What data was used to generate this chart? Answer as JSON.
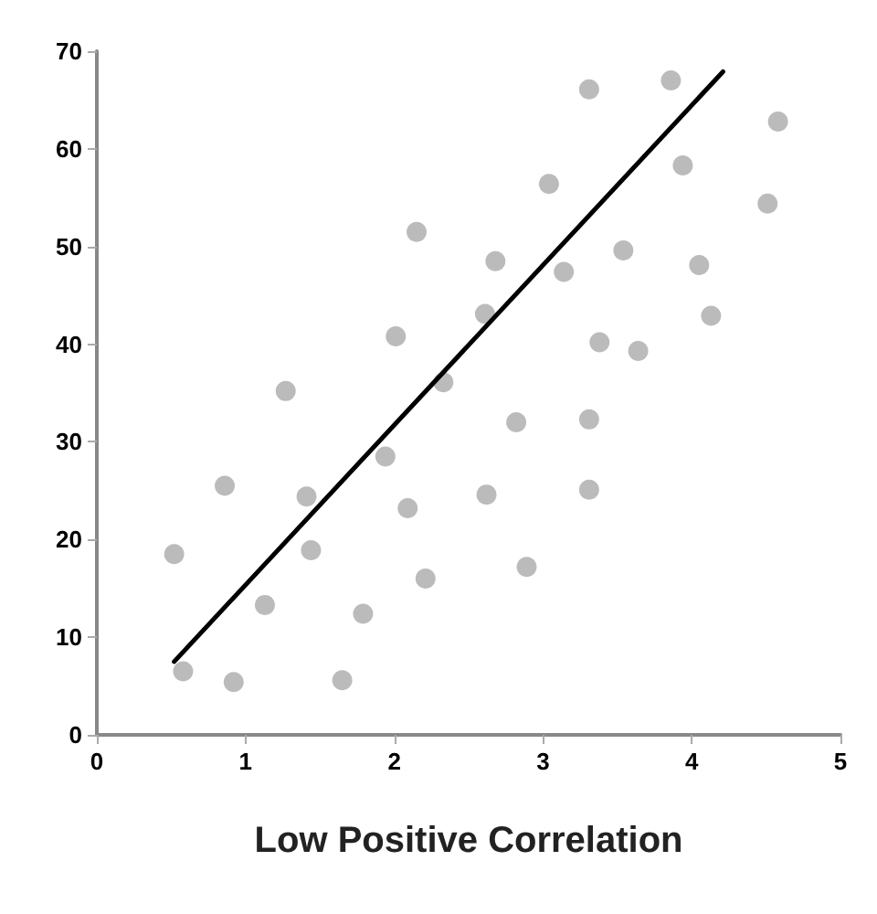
{
  "chart_data": {
    "type": "scatter",
    "xlabel": "Low Positive Correlation",
    "xlim": [
      0,
      5
    ],
    "xticks": [
      0,
      1,
      2,
      3,
      4,
      5
    ],
    "ylim": [
      0,
      70
    ],
    "yticks": [
      0,
      10,
      20,
      30,
      40,
      50,
      60,
      70
    ],
    "grid": false,
    "marker": "circle",
    "series": [
      {
        "type": "scatter",
        "color": "#aaaaaa",
        "x": [
          0.52,
          0.58,
          0.86,
          0.92,
          1.13,
          1.27,
          1.41,
          1.44,
          1.65,
          1.79,
          1.94,
          2.01,
          2.09,
          2.15,
          2.21,
          2.33,
          2.61,
          2.62,
          2.68,
          2.82,
          2.89,
          3.04,
          3.14,
          3.31,
          3.31,
          3.31,
          3.38,
          3.54,
          3.64,
          3.86,
          3.94,
          4.05,
          4.13,
          4.51,
          4.58
        ],
        "values": [
          18.5,
          6.5,
          25.5,
          5.4,
          13.3,
          35.2,
          24.4,
          18.9,
          5.6,
          12.4,
          28.5,
          40.8,
          23.2,
          51.5,
          16,
          36.1,
          43.1,
          24.6,
          48.5,
          32,
          17.2,
          56.4,
          47.4,
          66.1,
          32.3,
          25.1,
          40.2,
          49.6,
          39.3,
          67,
          58.3,
          48.1,
          42.9,
          54.4,
          62.8
        ]
      },
      {
        "type": "line",
        "color": "#000000",
        "x": [
          0.52,
          4.21
        ],
        "values": [
          7.5,
          67.9
        ],
        "marker": "none",
        "line_style": "solid"
      }
    ]
  }
}
